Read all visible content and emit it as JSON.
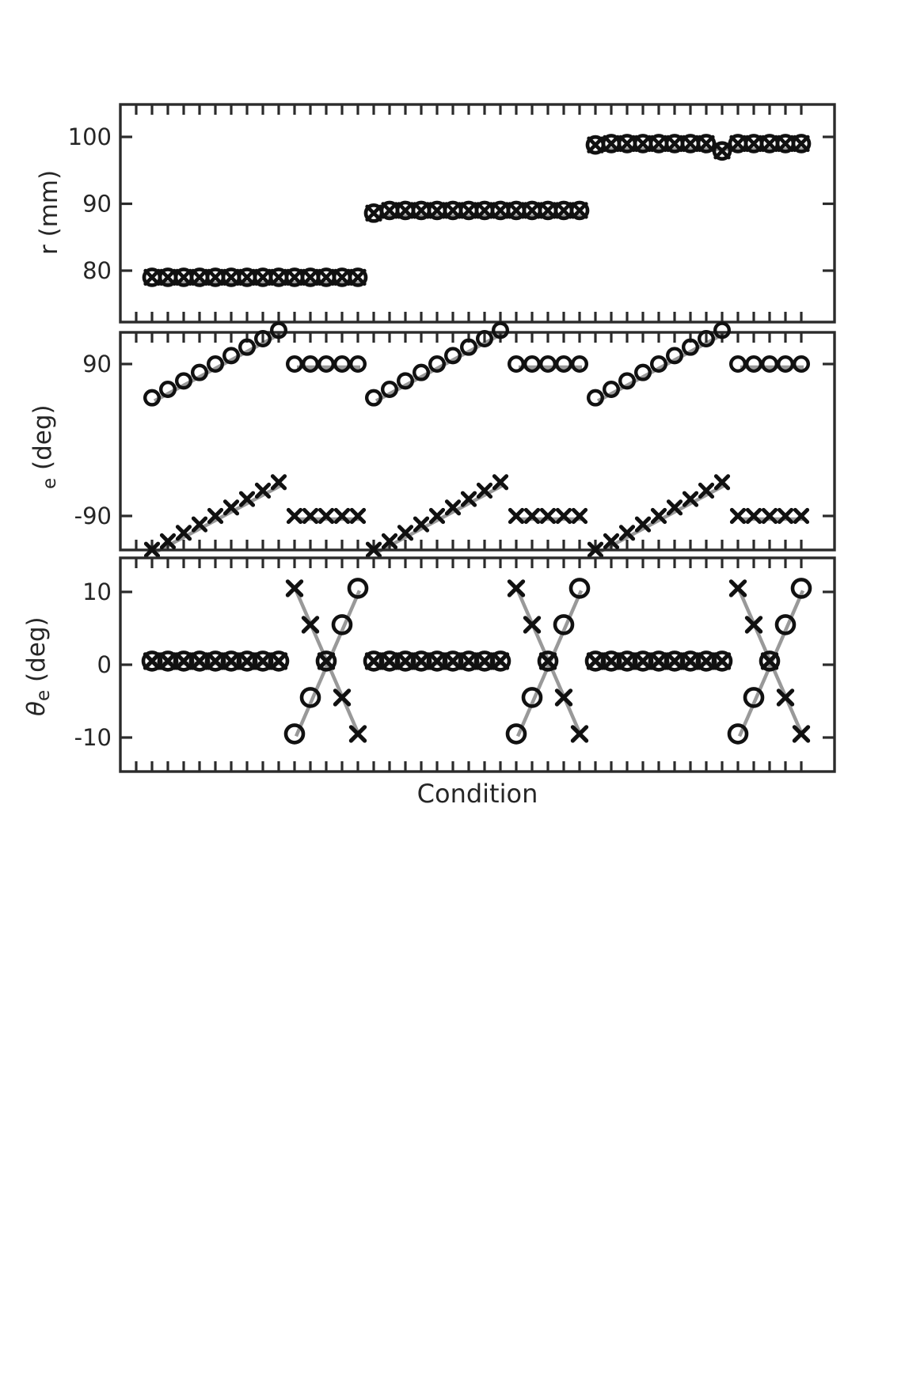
{
  "figure": {
    "xlabel": "Condition",
    "background": "#ffffff",
    "axis_color": "#2b2b2b",
    "text_color": "#262626",
    "marker_color": "#111111",
    "guide_color": "#999999"
  },
  "chart_data": [
    {
      "type": "scatter",
      "panel": "r",
      "ylabel": {
        "pre": "r",
        "sub": "",
        "post": " (mm)",
        "italic_pre": false
      },
      "yticks": [
        80,
        90,
        100
      ],
      "ylim": [
        72.5,
        106.5
      ],
      "x_range": [
        1,
        42
      ],
      "xlabel": "Condition",
      "series": [
        {
          "name": "r-measured-circles",
          "marker": "circle",
          "values": [
            79,
            79,
            79,
            79,
            79,
            79,
            79,
            79,
            79,
            79,
            79,
            79,
            79,
            79,
            88.6,
            89,
            89,
            89,
            89,
            89,
            89,
            89,
            89,
            89,
            89,
            89,
            89,
            89,
            98.8,
            99,
            99,
            99,
            99,
            99,
            99,
            99,
            97.9,
            99,
            99,
            99,
            99,
            99
          ]
        },
        {
          "name": "r-measured-crosses",
          "marker": "x",
          "values": [
            79,
            79,
            79,
            79,
            79,
            79,
            79,
            79,
            79,
            79,
            79,
            79,
            79,
            79,
            88.6,
            89,
            89,
            89,
            89,
            89,
            89,
            89,
            89,
            89,
            89,
            89,
            89,
            89,
            98.8,
            99,
            99,
            99,
            99,
            99,
            99,
            99,
            97.9,
            99,
            99,
            99,
            99,
            99
          ]
        }
      ],
      "guides": [
        [
          1,
          79,
          14,
          79
        ],
        [
          15,
          89,
          28,
          89
        ],
        [
          29,
          99,
          42,
          99
        ]
      ]
    },
    {
      "type": "scatter",
      "panel": "e",
      "ylabel": {
        "pre": "",
        "sub": "e",
        "post": " (deg)",
        "italic_pre": false
      },
      "yticks": [
        90,
        -90
      ],
      "ylim": [
        -130,
        127.5
      ],
      "x_range": [
        1,
        42
      ],
      "xlabel": "Condition",
      "series": [
        {
          "name": "elevation-circles",
          "marker": "circle",
          "values": [
            50,
            60,
            70,
            80,
            90,
            100,
            110,
            120,
            130,
            90,
            90,
            90,
            90,
            90,
            50,
            60,
            70,
            80,
            90,
            100,
            110,
            120,
            130,
            90,
            90,
            90,
            90,
            90,
            50,
            60,
            70,
            80,
            90,
            100,
            110,
            120,
            130,
            90,
            90,
            90,
            90,
            90
          ]
        },
        {
          "name": "elevation-crosses",
          "marker": "x",
          "values": [
            -130,
            -120,
            -110,
            -100,
            -90,
            -80,
            -70,
            -60,
            -50,
            -90,
            -90,
            -90,
            -90,
            -90,
            -130,
            -120,
            -110,
            -100,
            -90,
            -80,
            -70,
            -60,
            -50,
            -90,
            -90,
            -90,
            -90,
            -90,
            -130,
            -120,
            -110,
            -100,
            -90,
            -80,
            -70,
            -60,
            -50,
            -90,
            -90,
            -90,
            -90,
            -90
          ]
        }
      ],
      "guides": [
        [
          1,
          50,
          9,
          130
        ],
        [
          10,
          90,
          14,
          90
        ],
        [
          1,
          -130,
          9,
          -50
        ],
        [
          10,
          -90,
          14,
          -90
        ],
        [
          15,
          50,
          23,
          130
        ],
        [
          24,
          90,
          28,
          90
        ],
        [
          15,
          -130,
          23,
          -50
        ],
        [
          24,
          -90,
          28,
          -90
        ],
        [
          29,
          50,
          37,
          130
        ],
        [
          38,
          90,
          42,
          90
        ],
        [
          29,
          -130,
          37,
          -50
        ],
        [
          38,
          -90,
          42,
          -90
        ]
      ]
    },
    {
      "type": "scatter",
      "panel": "theta-e",
      "ylabel": {
        "pre": "θ",
        "sub": "e",
        "post": " (deg)",
        "italic_pre": true
      },
      "yticks": [
        10,
        0,
        -10
      ],
      "ylim": [
        -14.7,
        14.7
      ],
      "x_range": [
        1,
        42
      ],
      "xlabel": "Condition",
      "series": [
        {
          "name": "theta-circles",
          "marker": "circle",
          "values": [
            0.5,
            0.5,
            0.5,
            0.5,
            0.5,
            0.5,
            0.5,
            0.5,
            0.5,
            -9.5,
            -4.5,
            0.5,
            5.5,
            10.5,
            0.5,
            0.5,
            0.5,
            0.5,
            0.5,
            0.5,
            0.5,
            0.5,
            0.5,
            -9.5,
            -4.5,
            0.5,
            5.5,
            10.5,
            0.5,
            0.5,
            0.5,
            0.5,
            0.5,
            0.5,
            0.5,
            0.5,
            0.5,
            -9.5,
            -4.5,
            0.5,
            5.5,
            10.5
          ]
        },
        {
          "name": "theta-crosses",
          "marker": "x",
          "values": [
            0.5,
            0.5,
            0.5,
            0.5,
            0.5,
            0.5,
            0.5,
            0.5,
            0.5,
            10.5,
            5.5,
            0.5,
            -4.5,
            -9.5,
            0.5,
            0.5,
            0.5,
            0.5,
            0.5,
            0.5,
            0.5,
            0.5,
            0.5,
            10.5,
            5.5,
            0.5,
            -4.5,
            -9.5,
            0.5,
            0.5,
            0.5,
            0.5,
            0.5,
            0.5,
            0.5,
            0.5,
            0.5,
            10.5,
            5.5,
            0.5,
            -4.5,
            -9.5
          ]
        }
      ],
      "guides": [
        [
          1,
          0.5,
          9,
          0.5
        ],
        [
          10,
          -9.5,
          14,
          10.5
        ],
        [
          10,
          10.5,
          14,
          -9.5
        ],
        [
          15,
          0.5,
          23,
          0.5
        ],
        [
          24,
          -9.5,
          28,
          10.5
        ],
        [
          24,
          10.5,
          28,
          -9.5
        ],
        [
          29,
          0.5,
          37,
          0.5
        ],
        [
          38,
          -9.5,
          42,
          10.5
        ],
        [
          38,
          10.5,
          42,
          -9.5
        ]
      ]
    }
  ]
}
